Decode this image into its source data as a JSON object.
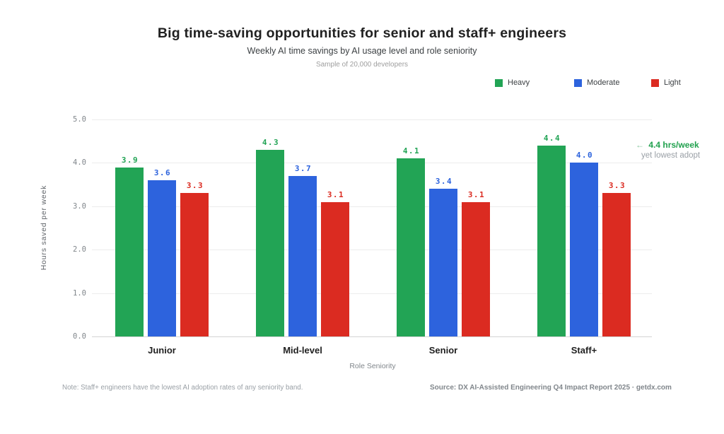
{
  "chart_data": {
    "type": "bar",
    "title": "Big time-saving opportunities for senior and staff+ engineers",
    "subtitle": "Weekly AI time savings by AI usage level and role seniority",
    "caption": "Sample of 20,000 developers",
    "categories": [
      "Junior",
      "Mid-level",
      "Senior",
      "Staff+"
    ],
    "series": [
      {
        "name": "Heavy",
        "color": "#22a455",
        "values": [
          3.9,
          4.3,
          4.1,
          4.4
        ]
      },
      {
        "name": "Moderate",
        "color": "#2d63dd",
        "values": [
          3.6,
          3.7,
          3.4,
          4.0
        ]
      },
      {
        "name": "Light",
        "color": "#db2b21",
        "values": [
          3.3,
          3.1,
          3.1,
          3.3
        ]
      }
    ],
    "xlabel": "Role Seniority",
    "ylabel": "Hours saved per week",
    "ylim": [
      0,
      5
    ],
    "yticks": [
      0,
      1,
      2,
      3,
      4,
      5
    ],
    "ytick_labels": [
      "0.0",
      "1.0",
      "2.0",
      "3.0",
      "4.0",
      "5.0"
    ],
    "grid": true,
    "legend_position": "top-right",
    "bar_value_labels": true,
    "annotation": {
      "arrow": "←",
      "line1": "4.4 hrs/week",
      "line2": "yet lowest adopt",
      "color": "#21a14e"
    },
    "note": "Note: Staff+ engineers have the lowest AI adoption rates of any seniority band.",
    "source": "Source: DX AI-Assisted Engineering Q4 Impact Report 2025 · getdx.com"
  }
}
